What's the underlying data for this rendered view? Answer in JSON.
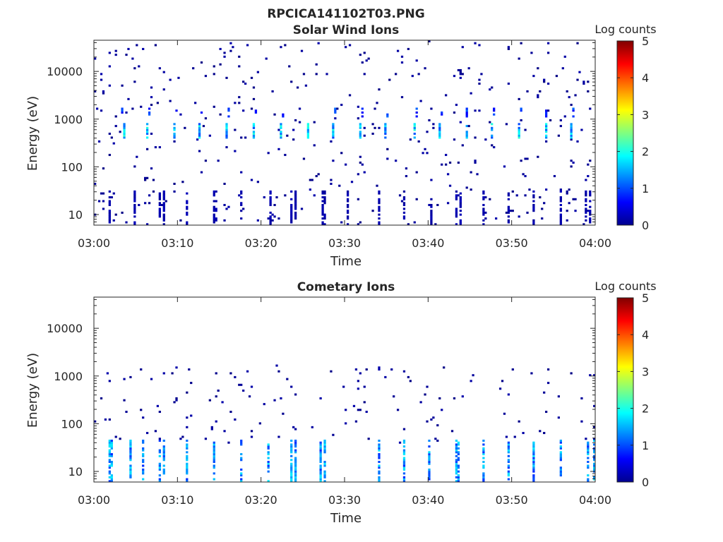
{
  "figure": {
    "title": "RPCICA141102T03.PNG",
    "colors": {
      "axis": "#262626",
      "background": "#ffffff",
      "colormap": "jet"
    }
  },
  "chart_data": [
    {
      "type": "heatmap",
      "title": "Solar Wind Ions",
      "xlabel": "Time",
      "ylabel": "Energy (eV)",
      "yscale": "log",
      "xlim": [
        "03:00",
        "04:00"
      ],
      "ylim": [
        6,
        45000
      ],
      "xticks": [
        "03:00",
        "03:10",
        "03:20",
        "03:30",
        "03:40",
        "03:50",
        "04:00"
      ],
      "xtick_values_min": [
        0,
        10,
        20,
        30,
        40,
        50,
        60
      ],
      "yticks": [
        "10",
        "100",
        "1000",
        "10000"
      ],
      "ytick_values": [
        10,
        100,
        1000,
        10000
      ],
      "colorbar": {
        "title": "Log counts",
        "ticks": [
          "0",
          "1",
          "2",
          "3",
          "4",
          "5"
        ],
        "range": [
          0,
          5
        ]
      },
      "features": {
        "bright_bursts": {
          "energy_range_eV": [
            420,
            760
          ],
          "log_counts_peak": 2.1,
          "times_min": [
            3.4,
            6.3,
            9.5,
            12.6,
            15.7,
            19.0,
            22.2,
            25.4,
            28.5,
            31.8,
            34.8,
            38.2,
            41.2,
            44.4,
            47.5,
            50.8,
            53.9,
            57.0
          ]
        },
        "upper_bursts": {
          "energy_range_eV": [
            1100,
            1700
          ],
          "log_counts_peak": 1.2,
          "times_min": [
            3.3,
            6.6,
            9.7,
            12.8,
            16.0,
            19.2,
            22.5,
            25.6,
            28.8,
            32.0,
            35.0,
            38.4,
            41.5,
            44.6,
            47.8,
            51.0,
            54.1,
            57.3
          ]
        },
        "low_energy_streaks": {
          "energy_range_eV": [
            6,
            30
          ],
          "log_counts_peak": 0.3,
          "times_min": [
            1.8,
            4.8,
            7.8,
            8.2,
            11.1,
            14.3,
            14.6,
            17.6,
            20.9,
            23.6,
            24.0,
            27.2,
            27.5,
            30.3,
            33.9,
            37.0,
            40.2,
            43.3,
            43.7,
            46.6,
            49.5,
            52.6,
            55.8,
            58.7,
            59.2
          ]
        },
        "background_noise_log_counts": 0.05
      }
    },
    {
      "type": "heatmap",
      "title": "Cometary Ions",
      "xlabel": "Time",
      "ylabel": "Energy (eV)",
      "yscale": "log",
      "xlim": [
        "03:00",
        "04:00"
      ],
      "ylim": [
        6,
        45000
      ],
      "xticks": [
        "03:00",
        "03:10",
        "03:20",
        "03:30",
        "03:40",
        "03:50",
        "04:00"
      ],
      "xtick_values_min": [
        0,
        10,
        20,
        30,
        40,
        50,
        60
      ],
      "yticks": [
        "10",
        "100",
        "1000",
        "10000"
      ],
      "ytick_values": [
        10,
        100,
        1000,
        10000
      ],
      "colorbar": {
        "title": "Log counts",
        "ticks": [
          "0",
          "1",
          "2",
          "3",
          "4",
          "5"
        ],
        "range": [
          0,
          5
        ]
      },
      "features": {
        "low_energy_streaks": {
          "energy_range_eV": [
            6,
            45
          ],
          "log_counts_peak": 1.8,
          "times_min": [
            1.8,
            2.1,
            4.3,
            5.7,
            7.8,
            8.3,
            11.1,
            14.3,
            17.5,
            20.7,
            23.6,
            24.0,
            27.0,
            27.4,
            34.0,
            37.0,
            40.0,
            43.2,
            43.6,
            46.4,
            49.6,
            52.6,
            55.8,
            59.0,
            59.7
          ]
        },
        "sparse_points": {
          "energy_range_eV": [
            40,
            1600
          ],
          "log_counts_peak": 0.3
        },
        "background_noise_log_counts": 0.04
      }
    }
  ]
}
